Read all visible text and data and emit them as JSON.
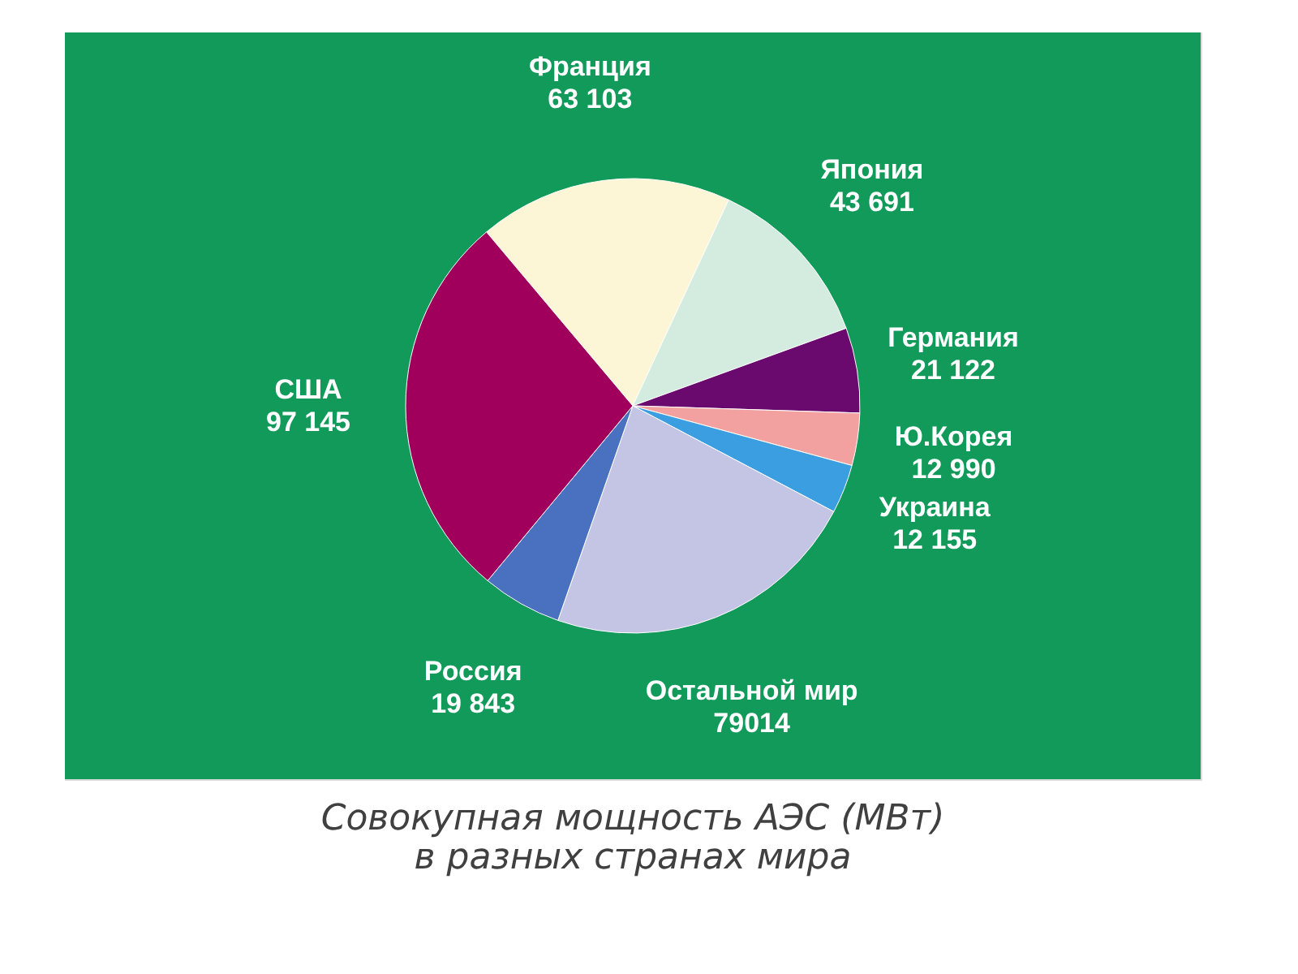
{
  "chart_data": {
    "type": "pie",
    "title": "Совокупная мощность АЭС (МВт)\nв разных странах мира",
    "categories": [
      "Франция",
      "Япония",
      "Германия",
      "Ю.Корея",
      "Украина",
      "Остальной мир",
      "Россия",
      "США"
    ],
    "values": [
      63103,
      43691,
      21122,
      12990,
      12155,
      79014,
      19843,
      97145
    ],
    "value_labels": [
      "63 103",
      "43 691",
      "21 122",
      "12 990",
      "12 155",
      "79014",
      "19 843",
      "97 145"
    ],
    "colors": [
      "#fcf6d6",
      "#d4ece0",
      "#6a0a6e",
      "#f2a0a0",
      "#3a9ee0",
      "#c4c4e4",
      "#4a70c0",
      "#a0005c"
    ],
    "legend": false
  }
}
